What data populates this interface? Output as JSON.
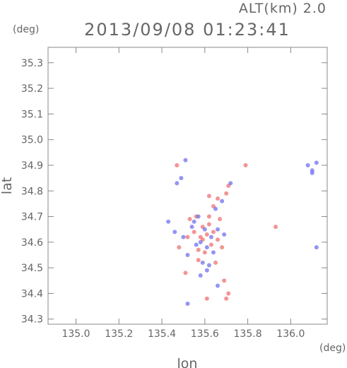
{
  "chart_data": {
    "type": "scatter",
    "title": "2013/09/08 01:23:41",
    "subtitle": "ALT(km) 2.0",
    "xlabel": "lon",
    "ylabel": "lat",
    "x_unit": "(deg)",
    "y_unit": "(deg)",
    "xlim": [
      134.87,
      136.17
    ],
    "ylim": [
      34.28,
      35.36
    ],
    "xticks": [
      "135.0",
      "135.2",
      "135.4",
      "135.6",
      "135.8",
      "136.0"
    ],
    "yticks": [
      "34.3",
      "34.4",
      "34.5",
      "34.6",
      "34.7",
      "34.8",
      "34.9",
      "35.0",
      "35.1",
      "35.2",
      "35.3"
    ],
    "grid": false,
    "colors": {
      "positive": "#f07070",
      "negative": "#7070f0",
      "axis": "#888888"
    },
    "series": [
      {
        "points": [
          [
            135.62,
            34.78
          ],
          [
            135.66,
            34.77
          ],
          [
            135.64,
            34.74
          ],
          [
            135.7,
            34.79
          ],
          [
            135.71,
            34.82
          ],
          [
            135.56,
            34.7
          ],
          [
            135.59,
            34.66
          ],
          [
            135.61,
            34.63
          ],
          [
            135.58,
            34.62
          ],
          [
            135.63,
            34.59
          ],
          [
            135.66,
            34.61
          ],
          [
            135.55,
            34.64
          ],
          [
            135.57,
            34.57
          ],
          [
            135.6,
            34.56
          ],
          [
            135.64,
            34.64
          ],
          [
            135.52,
            34.62
          ],
          [
            135.68,
            34.58
          ],
          [
            135.62,
            34.7
          ],
          [
            135.67,
            34.69
          ],
          [
            135.51,
            34.48
          ],
          [
            135.48,
            34.58
          ],
          [
            135.69,
            34.45
          ],
          [
            135.71,
            34.4
          ],
          [
            135.7,
            34.38
          ],
          [
            135.61,
            34.38
          ],
          [
            135.47,
            34.9
          ],
          [
            135.93,
            34.66
          ],
          [
            135.79,
            34.9
          ],
          [
            135.62,
            34.67
          ],
          [
            135.59,
            34.61
          ],
          [
            135.57,
            34.53
          ],
          [
            135.65,
            34.52
          ],
          [
            135.53,
            34.69
          ]
        ]
      },
      {
        "points": [
          [
            135.6,
            34.65
          ],
          [
            135.58,
            34.6
          ],
          [
            135.63,
            34.62
          ],
          [
            135.55,
            34.68
          ],
          [
            135.57,
            34.7
          ],
          [
            135.54,
            34.66
          ],
          [
            135.61,
            34.58
          ],
          [
            135.64,
            34.56
          ],
          [
            135.59,
            34.52
          ],
          [
            135.62,
            34.51
          ],
          [
            135.52,
            34.55
          ],
          [
            135.66,
            34.65
          ],
          [
            135.69,
            34.63
          ],
          [
            135.56,
            34.59
          ],
          [
            135.5,
            34.62
          ],
          [
            135.65,
            34.73
          ],
          [
            135.68,
            34.76
          ],
          [
            135.72,
            34.83
          ],
          [
            135.47,
            34.83
          ],
          [
            135.49,
            34.85
          ],
          [
            135.51,
            34.92
          ],
          [
            136.08,
            34.9
          ],
          [
            136.1,
            34.88
          ],
          [
            136.12,
            34.91
          ],
          [
            136.1,
            34.87
          ],
          [
            135.46,
            34.64
          ],
          [
            135.66,
            34.43
          ],
          [
            135.52,
            34.36
          ],
          [
            135.43,
            34.68
          ],
          [
            136.12,
            34.58
          ],
          [
            135.61,
            34.49
          ],
          [
            135.58,
            34.47
          ]
        ]
      }
    ]
  }
}
